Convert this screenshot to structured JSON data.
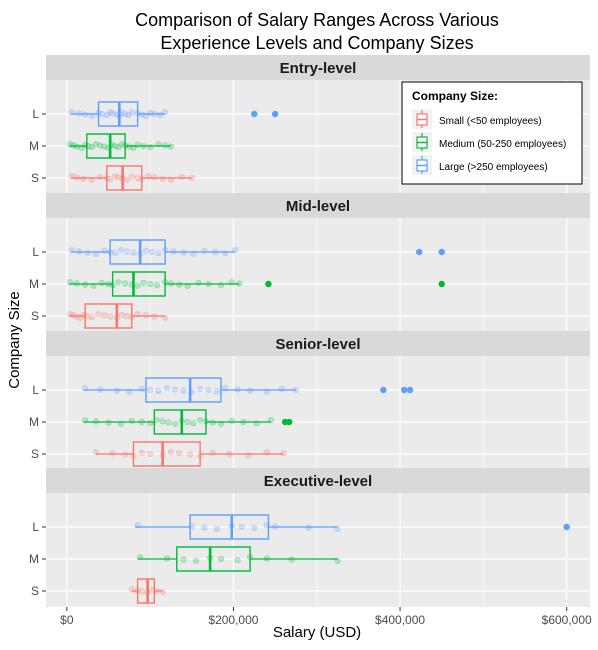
{
  "chart_data": {
    "type": "boxplot",
    "title_lines": [
      "Comparison of Salary Ranges Across Various",
      "Experience Levels and Company Sizes"
    ],
    "xlabel": "Salary (USD)",
    "ylabel": "Company Size",
    "x_ticks": [
      {
        "value": 0,
        "label": "$0"
      },
      {
        "value": 200000,
        "label": "$200,000"
      },
      {
        "value": 400000,
        "label": "$400,000"
      },
      {
        "value": 600000,
        "label": "$600,000"
      }
    ],
    "xlim": [
      -25000,
      628000
    ],
    "categories": [
      "S",
      "M",
      "L"
    ],
    "grid": true,
    "colors": {
      "S": "#F8766D",
      "M": "#00BA38",
      "L": "#619CFF"
    },
    "legend": {
      "title": "Company Size:",
      "placement": "top-right of first panel",
      "entries": [
        {
          "key": "S",
          "label": "Small (<50 employees)"
        },
        {
          "key": "M",
          "label": "Medium (50-250 employees)"
        },
        {
          "key": "L",
          "label": "Large (>250 employees)"
        }
      ]
    },
    "panels": [
      {
        "label": "Entry-level",
        "boxes": {
          "L": {
            "whisker_low": 5000,
            "q1": 38000,
            "median": 63000,
            "q3": 85000,
            "whisker_high": 118000,
            "outliers": [
              225000,
              250000
            ],
            "points": [
              6000,
              15000,
              22000,
              30000,
              38000,
              42000,
              48000,
              52000,
              55000,
              60000,
              63000,
              66000,
              70000,
              74000,
              78000,
              85000,
              90000,
              95000,
              100000,
              105000,
              112000,
              118000
            ]
          },
          "M": {
            "whisker_low": 3000,
            "q1": 24000,
            "median": 52000,
            "q3": 70000,
            "whisker_high": 125000,
            "outliers": [],
            "points": [
              4000,
              8000,
              12000,
              18000,
              22000,
              26000,
              30000,
              35000,
              40000,
              45000,
              50000,
              54000,
              58000,
              62000,
              66000,
              70000,
              75000,
              80000,
              85000,
              92000,
              100000,
              110000,
              118000,
              125000
            ]
          },
          "S": {
            "whisker_low": 5000,
            "q1": 48000,
            "median": 67000,
            "q3": 90000,
            "whisker_high": 150000,
            "outliers": [],
            "points": [
              6000,
              12000,
              20000,
              30000,
              40000,
              48000,
              52000,
              58000,
              62000,
              67000,
              72000,
              78000,
              85000,
              90000,
              98000,
              105000,
              115000,
              125000,
              138000,
              150000
            ]
          }
        }
      },
      {
        "label": "Mid-level",
        "boxes": {
          "L": {
            "whisker_low": 5000,
            "q1": 52000,
            "median": 88000,
            "q3": 118000,
            "whisker_high": 202000,
            "outliers": [
              423000,
              450000
            ],
            "points": [
              6000,
              15000,
              25000,
              35000,
              45000,
              52000,
              58000,
              65000,
              72000,
              80000,
              88000,
              95000,
              102000,
              110000,
              118000,
              128000,
              140000,
              152000,
              165000,
              178000,
              190000,
              202000
            ]
          },
          "M": {
            "whisker_low": 3000,
            "q1": 55000,
            "median": 80000,
            "q3": 118000,
            "whisker_high": 207000,
            "outliers": [
              242000,
              450000
            ],
            "points": [
              4000,
              12000,
              22000,
              32000,
              42000,
              50000,
              55000,
              62000,
              70000,
              78000,
              85000,
              92000,
              100000,
              108000,
              118000,
              125000,
              135000,
              145000,
              158000,
              170000,
              185000,
              198000,
              207000
            ]
          },
          "S": {
            "whisker_low": 3000,
            "q1": 22000,
            "median": 60000,
            "q3": 78000,
            "whisker_high": 118000,
            "outliers": [],
            "points": [
              4000,
              8000,
              12000,
              16000,
              20000,
              24000,
              30000,
              38000,
              45000,
              52000,
              60000,
              66000,
              72000,
              78000,
              85000,
              95000,
              105000,
              118000
            ]
          }
        }
      },
      {
        "label": "Senior-level",
        "boxes": {
          "L": {
            "whisker_low": 20000,
            "q1": 95000,
            "median": 148000,
            "q3": 185000,
            "whisker_high": 275000,
            "outliers": [
              380000,
              405000,
              412000
            ],
            "points": [
              22000,
              40000,
              60000,
              75000,
              90000,
              100000,
              110000,
              120000,
              130000,
              140000,
              150000,
              160000,
              170000,
              180000,
              190000,
              205000,
              220000,
              240000,
              258000,
              275000
            ]
          },
          "M": {
            "whisker_low": 20000,
            "q1": 105000,
            "median": 138000,
            "q3": 167000,
            "whisker_high": 245000,
            "outliers": [
              262000,
              267000
            ],
            "points": [
              22000,
              35000,
              50000,
              65000,
              78000,
              90000,
              100000,
              108000,
              115000,
              122000,
              130000,
              138000,
              145000,
              152000,
              160000,
              167000,
              175000,
              185000,
              198000,
              212000,
              228000,
              245000
            ]
          },
          "S": {
            "whisker_low": 35000,
            "q1": 80000,
            "median": 115000,
            "q3": 160000,
            "whisker_high": 260000,
            "outliers": [],
            "points": [
              35000,
              55000,
              70000,
              80000,
              90000,
              100000,
              115000,
              125000,
              135000,
              148000,
              160000,
              175000,
              195000,
              218000,
              240000,
              260000
            ]
          }
        }
      },
      {
        "label": "Executive-level",
        "boxes": {
          "L": {
            "whisker_low": 82000,
            "q1": 148000,
            "median": 198000,
            "q3": 242000,
            "whisker_high": 325000,
            "outliers": [
              600000
            ],
            "points": [
              85000,
              150000,
              165000,
              180000,
              198000,
              210000,
              225000,
              240000,
              250000,
              290000,
              325000
            ]
          },
          "M": {
            "whisker_low": 85000,
            "q1": 132000,
            "median": 172000,
            "q3": 220000,
            "whisker_high": 325000,
            "outliers": [],
            "points": [
              88000,
              120000,
              140000,
              155000,
              172000,
              185000,
              205000,
              220000,
              240000,
              270000,
              325000
            ]
          },
          "S": {
            "whisker_low": 78000,
            "q1": 85000,
            "median": 97000,
            "q3": 105000,
            "whisker_high": 115000,
            "outliers": [],
            "points": [
              78000,
              85000,
              90000,
              97000,
              102000,
              108000,
              115000
            ]
          }
        }
      }
    ]
  }
}
